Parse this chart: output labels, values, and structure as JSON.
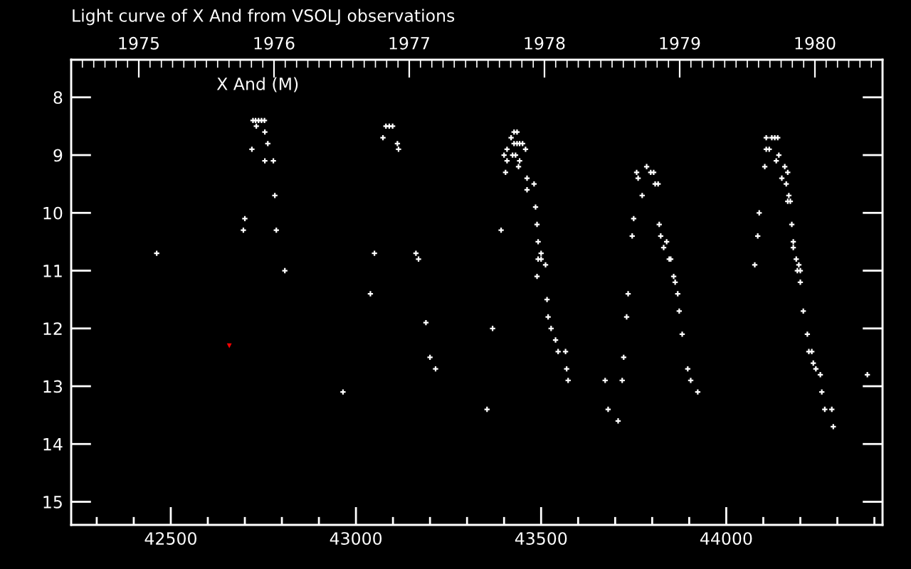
{
  "chart_data": {
    "type": "scatter",
    "title": "Light curve of X And from VSOLJ observations",
    "annotations": [
      "X And (M)"
    ],
    "series": [
      {
        "color": "#ffffff",
        "marker": "cross",
        "x": [
          42462,
          42696,
          42700,
          42719,
          42722,
          42729,
          42731,
          42737,
          42745,
          42753,
          42754,
          42754,
          42762,
          42777,
          42781,
          42785,
          42808,
          42965,
          43039,
          43050,
          43073,
          43081,
          43090,
          43099,
          43112,
          43115,
          43162,
          43169,
          43189,
          43200,
          43215,
          43354,
          43369,
          43392,
          43400,
          43404,
          43408,
          43408,
          43419,
          43423,
          43427,
          43427,
          43431,
          43435,
          43435,
          43439,
          43442,
          43442,
          43450,
          43458,
          43462,
          43462,
          43481,
          43485,
          43489,
          43489,
          43492,
          43492,
          43500,
          43500,
          43512,
          43516,
          43519,
          43527,
          43539,
          43546,
          43566,
          43569,
          43573,
          43673,
          43681,
          43708,
          43719,
          43723,
          43731,
          43735,
          43746,
          43750,
          43758,
          43762,
          43773,
          43785,
          43796,
          43804,
          43808,
          43816,
          43819,
          43823,
          43831,
          43839,
          43846,
          43850,
          43858,
          43862,
          43869,
          43873,
          43881,
          43896,
          43904,
          43923,
          44077,
          44085,
          44089,
          44104,
          44108,
          44108,
          44116,
          44123,
          44131,
          44135,
          44139,
          44142,
          44150,
          44158,
          44162,
          44166,
          44166,
          44169,
          44173,
          44177,
          44181,
          44181,
          44189,
          44192,
          44196,
          44200,
          44200,
          44208,
          44219,
          44223,
          44231,
          44235,
          44242,
          44254,
          44258,
          44266,
          44285,
          44289,
          44381
        ],
        "values": [
          10.7,
          10.3,
          10.1,
          8.9,
          8.4,
          8.4,
          8.5,
          8.4,
          8.4,
          8.4,
          8.6,
          9.1,
          8.8,
          9.1,
          9.7,
          10.3,
          11.0,
          13.1,
          11.4,
          10.7,
          8.7,
          8.5,
          8.5,
          8.5,
          8.8,
          8.9,
          10.7,
          10.8,
          11.9,
          12.5,
          12.7,
          13.4,
          12.0,
          10.3,
          9.0,
          9.3,
          8.9,
          9.1,
          8.7,
          9.0,
          8.6,
          8.8,
          9.0,
          8.6,
          8.8,
          9.2,
          8.8,
          9.1,
          8.8,
          8.9,
          9.4,
          9.6,
          9.5,
          9.9,
          10.2,
          11.1,
          10.5,
          10.8,
          10.7,
          10.8,
          10.9,
          11.5,
          11.8,
          12.0,
          12.2,
          12.4,
          12.4,
          12.7,
          12.9,
          12.9,
          13.4,
          13.6,
          12.9,
          12.5,
          11.8,
          11.4,
          10.4,
          10.1,
          9.3,
          9.4,
          9.7,
          9.2,
          9.3,
          9.3,
          9.5,
          9.5,
          10.2,
          10.4,
          10.6,
          10.5,
          10.8,
          10.8,
          11.1,
          11.2,
          11.4,
          11.7,
          12.1,
          12.7,
          12.9,
          13.1,
          10.9,
          10.4,
          10.0,
          9.2,
          8.9,
          8.7,
          8.9,
          8.7,
          8.7,
          9.1,
          8.7,
          9.0,
          9.4,
          9.2,
          9.5,
          9.3,
          9.8,
          9.7,
          9.8,
          10.2,
          10.5,
          10.6,
          10.8,
          11.0,
          10.9,
          11.0,
          11.2,
          11.7,
          12.1,
          12.4,
          12.4,
          12.6,
          12.7,
          12.8,
          13.1,
          13.4,
          13.4,
          13.7,
          12.8
        ]
      },
      {
        "color": "#ff0000",
        "marker": "triangle",
        "x": [
          42658
        ],
        "values": [
          12.3
        ]
      }
    ],
    "xlim": [
      42231,
      44422
    ],
    "xticks": [
      {
        "value": 42300,
        "label": null
      },
      {
        "value": 42400,
        "label": null
      },
      42500,
      {
        "value": 42600,
        "label": null
      },
      {
        "value": 42700,
        "label": null
      },
      {
        "value": 42800,
        "label": null
      },
      {
        "value": 42900,
        "label": null
      },
      43000,
      {
        "value": 43100,
        "label": null
      },
      {
        "value": 43200,
        "label": null
      },
      {
        "value": 43300,
        "label": null
      },
      {
        "value": 43400,
        "label": null
      },
      43500,
      {
        "value": 43600,
        "label": null
      },
      {
        "value": 43700,
        "label": null
      },
      {
        "value": 43800,
        "label": null
      },
      {
        "value": 43900,
        "label": null
      },
      44000,
      {
        "value": 44100,
        "label": null
      },
      {
        "value": 44200,
        "label": null
      },
      {
        "value": 44300,
        "label": null
      },
      {
        "value": 44400,
        "label": null
      }
    ],
    "x2lim": [
      1974.5,
      1980.5
    ],
    "x2ticks": [
      {
        "value": 1974.583,
        "label": null
      },
      {
        "value": 1974.667,
        "label": null
      },
      {
        "value": 1974.75,
        "label": null
      },
      {
        "value": 1974.833,
        "label": null
      },
      {
        "value": 1974.917,
        "label": null
      },
      1975,
      {
        "value": 1975.083,
        "label": null
      },
      {
        "value": 1975.167,
        "label": null
      },
      {
        "value": 1975.25,
        "label": null
      },
      {
        "value": 1975.333,
        "label": null
      },
      {
        "value": 1975.417,
        "label": null
      },
      {
        "value": 1975.5,
        "label": null
      },
      {
        "value": 1975.583,
        "label": null
      },
      {
        "value": 1975.667,
        "label": null
      },
      {
        "value": 1975.75,
        "label": null
      },
      {
        "value": 1975.833,
        "label": null
      },
      {
        "value": 1975.917,
        "label": null
      },
      1976,
      {
        "value": 1976.083,
        "label": null
      },
      {
        "value": 1976.167,
        "label": null
      },
      {
        "value": 1976.25,
        "label": null
      },
      {
        "value": 1976.333,
        "label": null
      },
      {
        "value": 1976.417,
        "label": null
      },
      {
        "value": 1976.5,
        "label": null
      },
      {
        "value": 1976.583,
        "label": null
      },
      {
        "value": 1976.667,
        "label": null
      },
      {
        "value": 1976.75,
        "label": null
      },
      {
        "value": 1976.833,
        "label": null
      },
      {
        "value": 1976.917,
        "label": null
      },
      1977,
      {
        "value": 1977.083,
        "label": null
      },
      {
        "value": 1977.167,
        "label": null
      },
      {
        "value": 1977.25,
        "label": null
      },
      {
        "value": 1977.333,
        "label": null
      },
      {
        "value": 1977.417,
        "label": null
      },
      {
        "value": 1977.5,
        "label": null
      },
      {
        "value": 1977.583,
        "label": null
      },
      {
        "value": 1977.667,
        "label": null
      },
      {
        "value": 1977.75,
        "label": null
      },
      {
        "value": 1977.833,
        "label": null
      },
      {
        "value": 1977.917,
        "label": null
      },
      1978,
      {
        "value": 1978.083,
        "label": null
      },
      {
        "value": 1978.167,
        "label": null
      },
      {
        "value": 1978.25,
        "label": null
      },
      {
        "value": 1978.333,
        "label": null
      },
      {
        "value": 1978.417,
        "label": null
      },
      {
        "value": 1978.5,
        "label": null
      },
      {
        "value": 1978.583,
        "label": null
      },
      {
        "value": 1978.667,
        "label": null
      },
      {
        "value": 1978.75,
        "label": null
      },
      {
        "value": 1978.833,
        "label": null
      },
      {
        "value": 1978.917,
        "label": null
      },
      1979,
      {
        "value": 1979.083,
        "label": null
      },
      {
        "value": 1979.167,
        "label": null
      },
      {
        "value": 1979.25,
        "label": null
      },
      {
        "value": 1979.333,
        "label": null
      },
      {
        "value": 1979.417,
        "label": null
      },
      {
        "value": 1979.5,
        "label": null
      },
      {
        "value": 1979.583,
        "label": null
      },
      {
        "value": 1979.667,
        "label": null
      },
      {
        "value": 1979.75,
        "label": null
      },
      {
        "value": 1979.833,
        "label": null
      },
      {
        "value": 1979.917,
        "label": null
      },
      1980,
      {
        "value": 1980.083,
        "label": null
      },
      {
        "value": 1980.167,
        "label": null
      },
      {
        "value": 1980.25,
        "label": null
      },
      {
        "value": 1980.333,
        "label": null
      },
      {
        "value": 1980.417,
        "label": null
      }
    ],
    "ylim": [
      15.4,
      7.35
    ],
    "yticks": [
      8,
      9,
      10,
      11,
      12,
      13,
      14,
      15
    ]
  }
}
